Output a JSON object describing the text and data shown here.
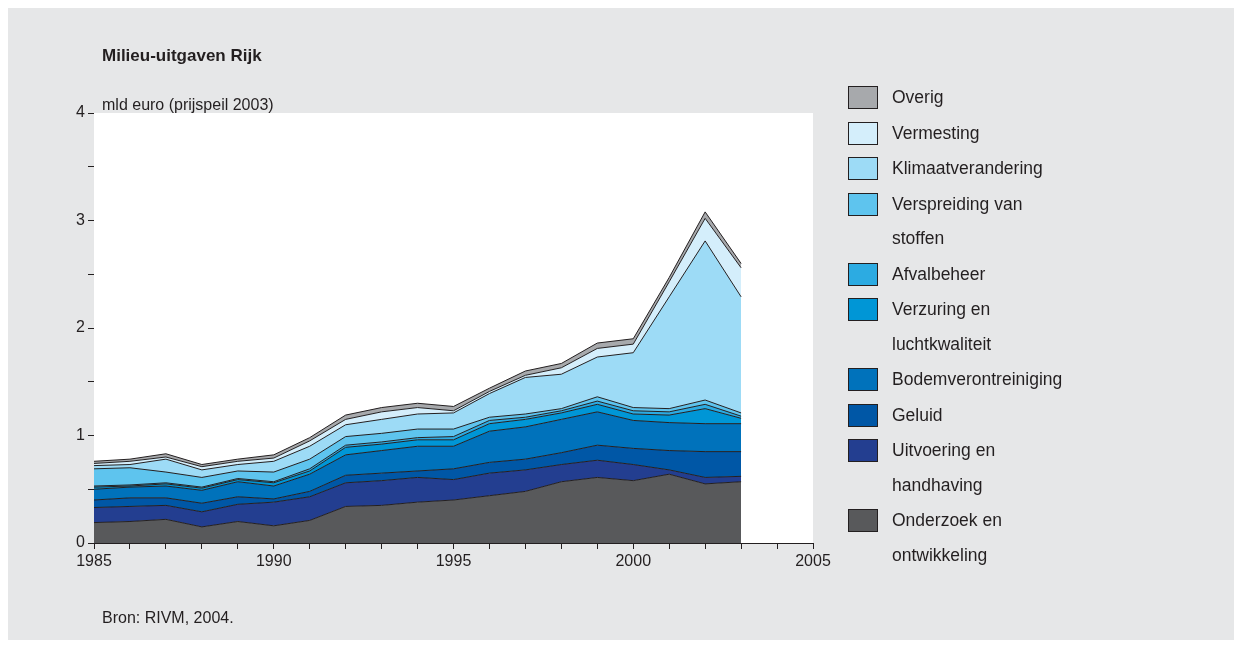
{
  "chart_data": {
    "type": "area",
    "title": "Milieu-uitgaven Rijk",
    "ylabel": "mld euro (prijspeil 2003)",
    "annotations": [
      "Bron: RIVM, 2004."
    ],
    "x": [
      1985,
      1986,
      1987,
      1988,
      1989,
      1990,
      1991,
      1992,
      1993,
      1994,
      1995,
      1996,
      1997,
      1998,
      1999,
      2000,
      2001,
      2002,
      2003
    ],
    "stacked": true,
    "legend": "right",
    "marker": "none",
    "grid": false,
    "xlim": [
      1985,
      2005
    ],
    "xticks": [
      1985,
      {
        "value": 1986,
        "label": null
      },
      {
        "value": 1987,
        "label": null
      },
      {
        "value": 1988,
        "label": null
      },
      {
        "value": 1989,
        "label": null
      },
      1990,
      {
        "value": 1991,
        "label": null
      },
      {
        "value": 1992,
        "label": null
      },
      {
        "value": 1993,
        "label": null
      },
      {
        "value": 1994,
        "label": null
      },
      1995,
      {
        "value": 1996,
        "label": null
      },
      {
        "value": 1997,
        "label": null
      },
      {
        "value": 1998,
        "label": null
      },
      {
        "value": 1999,
        "label": null
      },
      2000,
      {
        "value": 2001,
        "label": null
      },
      {
        "value": 2002,
        "label": null
      },
      {
        "value": 2003,
        "label": null
      },
      {
        "value": 2004,
        "label": null
      },
      2005
    ],
    "ylim": [
      0,
      4
    ],
    "yticks": [
      0,
      {
        "value": 0.5,
        "label": null
      },
      1,
      {
        "value": 1.5,
        "label": null
      },
      2,
      {
        "value": 2.5,
        "label": null
      },
      3,
      {
        "value": 3.5,
        "label": null
      },
      4
    ],
    "series": [
      {
        "name": "Onderzoek en ontwikkeling",
        "color": "#58595b",
        "values": [
          0.19,
          0.2,
          0.22,
          0.15,
          0.2,
          0.16,
          0.21,
          0.34,
          0.35,
          0.38,
          0.4,
          0.44,
          0.48,
          0.57,
          0.61,
          0.58,
          0.64,
          0.55,
          0.57
        ]
      },
      {
        "name": "Uitvoering en handhaving",
        "color": "#233e90",
        "values": [
          0.14,
          0.14,
          0.13,
          0.14,
          0.16,
          0.22,
          0.22,
          0.22,
          0.23,
          0.23,
          0.19,
          0.21,
          0.2,
          0.16,
          0.16,
          0.15,
          0.04,
          0.06,
          0.05
        ]
      },
      {
        "name": "Geluid",
        "color": "#0057a6",
        "values": [
          0.07,
          0.08,
          0.07,
          0.08,
          0.07,
          0.03,
          0.05,
          0.07,
          0.07,
          0.06,
          0.1,
          0.1,
          0.1,
          0.11,
          0.14,
          0.15,
          0.18,
          0.24,
          0.23
        ]
      },
      {
        "name": "Bodemverontreiniging",
        "color": "#0072bb",
        "values": [
          0.1,
          0.1,
          0.11,
          0.12,
          0.14,
          0.12,
          0.16,
          0.19,
          0.21,
          0.23,
          0.21,
          0.29,
          0.3,
          0.31,
          0.31,
          0.26,
          0.26,
          0.26,
          0.26
        ]
      },
      {
        "name": "Verzuring en luchtkwaliteit",
        "color": "#0096d6",
        "values": [
          0.02,
          0.01,
          0.02,
          0.02,
          0.02,
          0.03,
          0.03,
          0.07,
          0.06,
          0.06,
          0.06,
          0.07,
          0.07,
          0.06,
          0.07,
          0.06,
          0.07,
          0.14,
          0.05
        ]
      },
      {
        "name": "Afvalbeheer",
        "color": "#2cabe2",
        "values": [
          0.01,
          0.01,
          0.01,
          0.01,
          0.01,
          0.01,
          0.02,
          0.02,
          0.02,
          0.02,
          0.03,
          0.03,
          0.02,
          0.02,
          0.03,
          0.03,
          0.03,
          0.04,
          0.02
        ]
      },
      {
        "name": "Verspreiding van stoffen",
        "color": "#5ec4ee",
        "values": [
          0.16,
          0.16,
          0.1,
          0.09,
          0.07,
          0.09,
          0.09,
          0.08,
          0.08,
          0.08,
          0.07,
          0.03,
          0.03,
          0.02,
          0.04,
          0.03,
          0.03,
          0.04,
          0.03
        ]
      },
      {
        "name": "Klimaatverandering",
        "color": "#9ddbf6",
        "values": [
          0.03,
          0.03,
          0.12,
          0.07,
          0.06,
          0.1,
          0.12,
          0.11,
          0.13,
          0.14,
          0.15,
          0.22,
          0.34,
          0.32,
          0.37,
          0.51,
          1.04,
          1.48,
          1.08
        ]
      },
      {
        "name": "Vermesting",
        "color": "#d4eefb",
        "values": [
          0.02,
          0.03,
          0.02,
          0.03,
          0.03,
          0.03,
          0.05,
          0.05,
          0.07,
          0.06,
          0.02,
          0.02,
          0.02,
          0.06,
          0.08,
          0.08,
          0.14,
          0.21,
          0.27
        ]
      },
      {
        "name": "Overig",
        "color": "#a7a9ac",
        "values": [
          0.02,
          0.02,
          0.03,
          0.02,
          0.02,
          0.03,
          0.03,
          0.04,
          0.04,
          0.04,
          0.04,
          0.03,
          0.04,
          0.04,
          0.05,
          0.05,
          0.04,
          0.06,
          0.04
        ]
      }
    ]
  }
}
